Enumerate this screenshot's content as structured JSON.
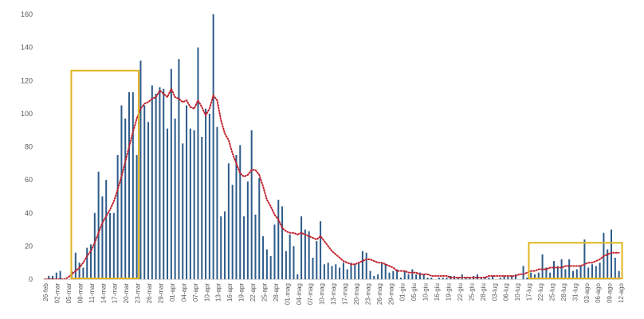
{
  "chart_data": {
    "type": "bar",
    "title": "",
    "xlabel": "",
    "ylabel": "",
    "ylim": [
      0,
      160
    ],
    "yticks": [
      0,
      20,
      40,
      60,
      80,
      100,
      120,
      140,
      160
    ],
    "grid": false,
    "legend": "none",
    "x_tick_labels": [
      "26-feb",
      "02-mar",
      "05-mar",
      "08-mar",
      "11-mar",
      "14-mar",
      "17-mar",
      "20-mar",
      "23-mar",
      "26-mar",
      "29-mar",
      "01-apr",
      "04-apr",
      "07-apr",
      "10-apr",
      "13-apr",
      "16-apr",
      "19-apr",
      "22-apr",
      "25-apr",
      "28-apr",
      "01-mag",
      "04-mag",
      "07-mag",
      "10-mag",
      "13-mag",
      "17-mag",
      "20-mag",
      "23-mag",
      "26-mag",
      "29-mag",
      "01-giu",
      "05-giu",
      "10-giu",
      "16-giu",
      "19-giu",
      "22-giu",
      "25-giu",
      "28-giu",
      "03-lug",
      "06-lug",
      "10-lug",
      "17-lug",
      "22-lug",
      "25-lug",
      "28-lug",
      "31-lug",
      "03-ago",
      "06-ago",
      "09-ago",
      "12-ago"
    ],
    "series": [
      {
        "kind": "bar",
        "color": "#2E5C8A",
        "values": [
          0,
          2,
          2,
          4,
          5,
          0,
          0,
          5,
          16,
          10,
          7,
          19,
          21,
          40,
          65,
          50,
          60,
          40,
          40,
          75,
          105,
          97,
          113,
          113,
          75,
          132,
          105,
          95,
          117,
          112,
          116,
          115,
          91,
          127,
          97,
          133,
          82,
          105,
          91,
          90,
          140,
          86,
          103,
          100,
          160,
          92,
          38,
          41,
          70,
          57,
          75,
          81,
          38,
          59,
          90,
          39,
          61,
          26,
          18,
          14,
          33,
          48,
          44,
          17,
          27,
          20,
          3,
          38,
          30,
          29,
          13,
          23,
          35,
          9,
          10,
          8,
          9,
          7,
          10,
          6,
          10,
          9,
          10,
          17,
          16,
          5,
          2,
          3,
          10,
          9,
          4,
          5,
          6,
          1,
          5,
          3,
          6,
          3,
          4,
          3,
          1,
          1,
          0,
          1,
          1,
          1,
          2,
          2,
          1,
          3,
          1,
          1,
          2,
          3,
          1,
          1,
          1,
          2,
          0,
          1,
          2,
          2,
          2,
          3,
          0,
          8,
          1,
          4,
          3,
          4,
          15,
          7,
          4,
          11,
          8,
          12,
          6,
          12,
          5,
          6,
          8,
          24,
          7,
          9,
          8,
          10,
          28,
          18,
          30,
          13,
          5
        ]
      },
      {
        "kind": "line",
        "style": "dotted",
        "color": "#C0202C",
        "values": [
          0,
          0,
          0,
          0,
          0,
          0,
          1,
          3,
          5,
          7,
          10,
          14,
          17,
          22,
          28,
          34,
          38,
          42,
          47,
          54,
          62,
          71,
          80,
          89,
          97,
          103,
          106,
          107,
          109,
          110,
          114,
          112,
          110,
          115,
          110,
          109,
          107,
          108,
          104,
          103,
          108,
          104,
          99,
          103,
          111,
          108,
          96,
          88,
          84,
          76,
          70,
          64,
          62,
          63,
          66,
          66,
          63,
          56,
          48,
          44,
          39,
          36,
          31,
          29,
          28,
          28,
          27,
          28,
          27,
          26,
          25,
          24,
          26,
          23,
          20,
          17,
          15,
          13,
          11,
          10,
          9,
          9,
          10,
          11,
          12,
          12,
          11,
          10,
          10,
          9,
          8,
          7,
          5,
          5,
          5,
          4,
          4,
          4,
          3,
          3,
          3,
          2,
          2,
          2,
          2,
          2,
          1,
          1,
          1,
          1,
          1,
          1,
          1,
          1,
          1,
          1,
          2,
          2,
          2,
          2,
          2,
          2,
          2,
          2,
          3,
          3,
          4,
          5,
          5,
          6,
          6,
          6,
          7,
          7,
          7,
          7,
          8,
          8,
          8,
          8,
          8,
          9,
          10,
          10,
          11,
          12,
          14,
          15,
          16,
          16,
          16
        ]
      }
    ],
    "annotations": [
      {
        "type": "rectangle",
        "color": "#E0B620",
        "x_from": "02-mar",
        "x_to": "23-mar",
        "y_from": 0,
        "y_to": 126
      },
      {
        "type": "rectangle",
        "color": "#E0B620",
        "x_from": "17-lug",
        "x_to": "12-ago",
        "y_from": 0,
        "y_to": 22
      }
    ]
  }
}
